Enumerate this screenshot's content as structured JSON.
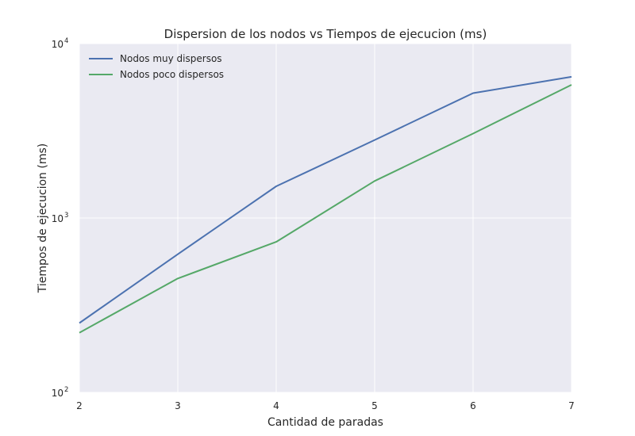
{
  "chart_data": {
    "type": "line",
    "title": "Dispersion de los nodos vs Tiempos de ejecucion (ms)",
    "xlabel": "Cantidad de paradas",
    "ylabel": "Tiempos de ejecucion (ms)",
    "x": [
      2,
      3,
      4,
      5,
      6,
      7
    ],
    "xlim": [
      2,
      7
    ],
    "ylim": [
      100,
      10000
    ],
    "yscale": "log",
    "grid": true,
    "legend_position": "top-left",
    "x_ticks": [
      {
        "value": 2,
        "label": "2"
      },
      {
        "value": 3,
        "label": "3"
      },
      {
        "value": 4,
        "label": "4"
      },
      {
        "value": 5,
        "label": "5"
      },
      {
        "value": 6,
        "label": "6"
      },
      {
        "value": 7,
        "label": "7"
      }
    ],
    "y_ticks": [
      {
        "value": 100,
        "base": "10",
        "exp": "2"
      },
      {
        "value": 1000,
        "base": "10",
        "exp": "3"
      },
      {
        "value": 10000,
        "base": "10",
        "exp": "4"
      }
    ],
    "series": [
      {
        "name": "Nodos muy dispersos",
        "color": "#4c72b0",
        "values": [
          250,
          620,
          1520,
          2800,
          5200,
          6450
        ]
      },
      {
        "name": "Nodos poco dispersos",
        "color": "#55a868",
        "values": [
          220,
          450,
          730,
          1630,
          3050,
          5800
        ]
      }
    ],
    "colors": {
      "plot_background": "#eaeaf2",
      "grid": "#ffffff"
    }
  }
}
